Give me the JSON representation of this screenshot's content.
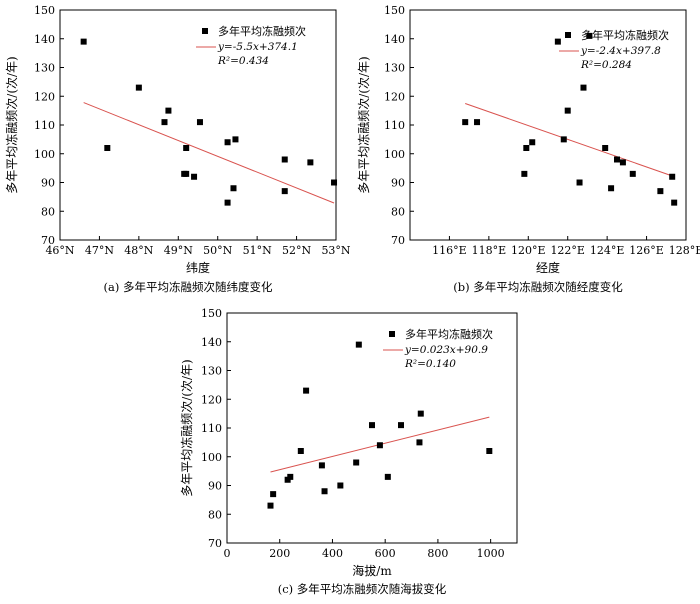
{
  "chart_data": [
    {
      "type": "scatter",
      "caption": "(a) 多年平均冻融频次随纬度变化",
      "xlabel": "纬度",
      "ylabel": "多年平均冻融频次/(次/年)",
      "xlim": [
        46,
        53
      ],
      "ylim": [
        70,
        150
      ],
      "xticks": [
        46,
        47,
        48,
        49,
        50,
        51,
        52,
        53
      ],
      "xtick_labels": [
        "46°N",
        "47°N",
        "48°N",
        "49°N",
        "50°N",
        "51°N",
        "52°N",
        "53°N"
      ],
      "yticks": [
        70,
        80,
        90,
        100,
        110,
        120,
        130,
        140,
        150
      ],
      "ytick_labels": [
        "70",
        "80",
        "90",
        "100",
        "110",
        "120",
        "130",
        "140",
        "150"
      ],
      "legend": "多年平均冻融频次",
      "equation": "y=-5.5x+374.1",
      "r2": "R²=0.434",
      "legend_position": "top-right",
      "points": [
        [
          46.6,
          139
        ],
        [
          47.2,
          102
        ],
        [
          48.0,
          123
        ],
        [
          48.65,
          111
        ],
        [
          48.75,
          115
        ],
        [
          49.15,
          93
        ],
        [
          49.2,
          93
        ],
        [
          49.2,
          102
        ],
        [
          49.4,
          92
        ],
        [
          49.55,
          111
        ],
        [
          50.25,
          83
        ],
        [
          50.25,
          104
        ],
        [
          50.4,
          88
        ],
        [
          50.45,
          105
        ],
        [
          51.7,
          98
        ],
        [
          51.7,
          87
        ],
        [
          52.35,
          97
        ],
        [
          52.95,
          90
        ]
      ],
      "fit": {
        "slope": -5.5,
        "intercept": 374.1,
        "x_range": [
          46.6,
          52.95
        ]
      }
    },
    {
      "type": "scatter",
      "caption": "(b) 多年平均冻融频次随经度变化",
      "xlabel": "经度",
      "ylabel": "多年平均冻融频次/(次/年)",
      "xlim": [
        114,
        128
      ],
      "ylim": [
        70,
        150
      ],
      "xticks": [
        116,
        118,
        120,
        122,
        124,
        126,
        128
      ],
      "xtick_labels": [
        "116°E",
        "118°E",
        "120°E",
        "122°E",
        "124°E",
        "126°E",
        "128°E"
      ],
      "yticks": [
        70,
        80,
        90,
        100,
        110,
        120,
        130,
        140,
        150
      ],
      "ytick_labels": [
        "70",
        "80",
        "90",
        "100",
        "110",
        "120",
        "130",
        "140",
        "150"
      ],
      "legend": "多年平均冻融频次",
      "equation": "y=-2.4x+397.8",
      "r2": "R²=0.284",
      "legend_position": "top-right",
      "points": [
        [
          116.8,
          111
        ],
        [
          117.4,
          111
        ],
        [
          119.8,
          93
        ],
        [
          119.9,
          102
        ],
        [
          120.2,
          104
        ],
        [
          121.5,
          139
        ],
        [
          121.8,
          105
        ],
        [
          122.0,
          115
        ],
        [
          122.6,
          90
        ],
        [
          122.8,
          123
        ],
        [
          123.1,
          141
        ],
        [
          123.9,
          102
        ],
        [
          124.2,
          88
        ],
        [
          124.5,
          98
        ],
        [
          124.8,
          97
        ],
        [
          125.3,
          93
        ],
        [
          126.7,
          87
        ],
        [
          127.3,
          92
        ],
        [
          127.4,
          83
        ]
      ],
      "fit": {
        "slope": -2.4,
        "intercept": 397.8,
        "x_range": [
          116.8,
          127.4
        ]
      }
    },
    {
      "type": "scatter",
      "caption": "(c) 多年平均冻融频次随海拔变化",
      "xlabel": "海拔/m",
      "ylabel": "多年平均冻融频次/(次/年)",
      "xlim": [
        0,
        1100
      ],
      "ylim": [
        70,
        150
      ],
      "xticks": [
        0,
        200,
        400,
        600,
        800,
        1000
      ],
      "xtick_labels": [
        "0",
        "200",
        "400",
        "600",
        "800",
        "1000"
      ],
      "yticks": [
        70,
        80,
        90,
        100,
        110,
        120,
        130,
        140,
        150
      ],
      "ytick_labels": [
        "70",
        "80",
        "90",
        "100",
        "110",
        "120",
        "130",
        "140",
        "150"
      ],
      "legend": "多年平均冻融频次",
      "equation": "y=0.023x+90.9",
      "r2": "R²=0.140",
      "legend_position": "top-right",
      "points": [
        [
          165,
          83
        ],
        [
          175,
          87
        ],
        [
          230,
          92
        ],
        [
          240,
          93
        ],
        [
          280,
          102
        ],
        [
          300,
          123
        ],
        [
          360,
          97
        ],
        [
          370,
          88
        ],
        [
          430,
          90
        ],
        [
          490,
          98
        ],
        [
          500,
          139
        ],
        [
          550,
          111
        ],
        [
          580,
          104
        ],
        [
          610,
          93
        ],
        [
          660,
          111
        ],
        [
          730,
          105
        ],
        [
          735,
          115
        ],
        [
          995,
          102
        ]
      ],
      "fit": {
        "slope": 0.023,
        "intercept": 90.9,
        "x_range": [
          165,
          995
        ]
      }
    }
  ],
  "colors": {
    "fit_line": "#d9534f",
    "marker": "#000000",
    "axis": "#000000"
  }
}
